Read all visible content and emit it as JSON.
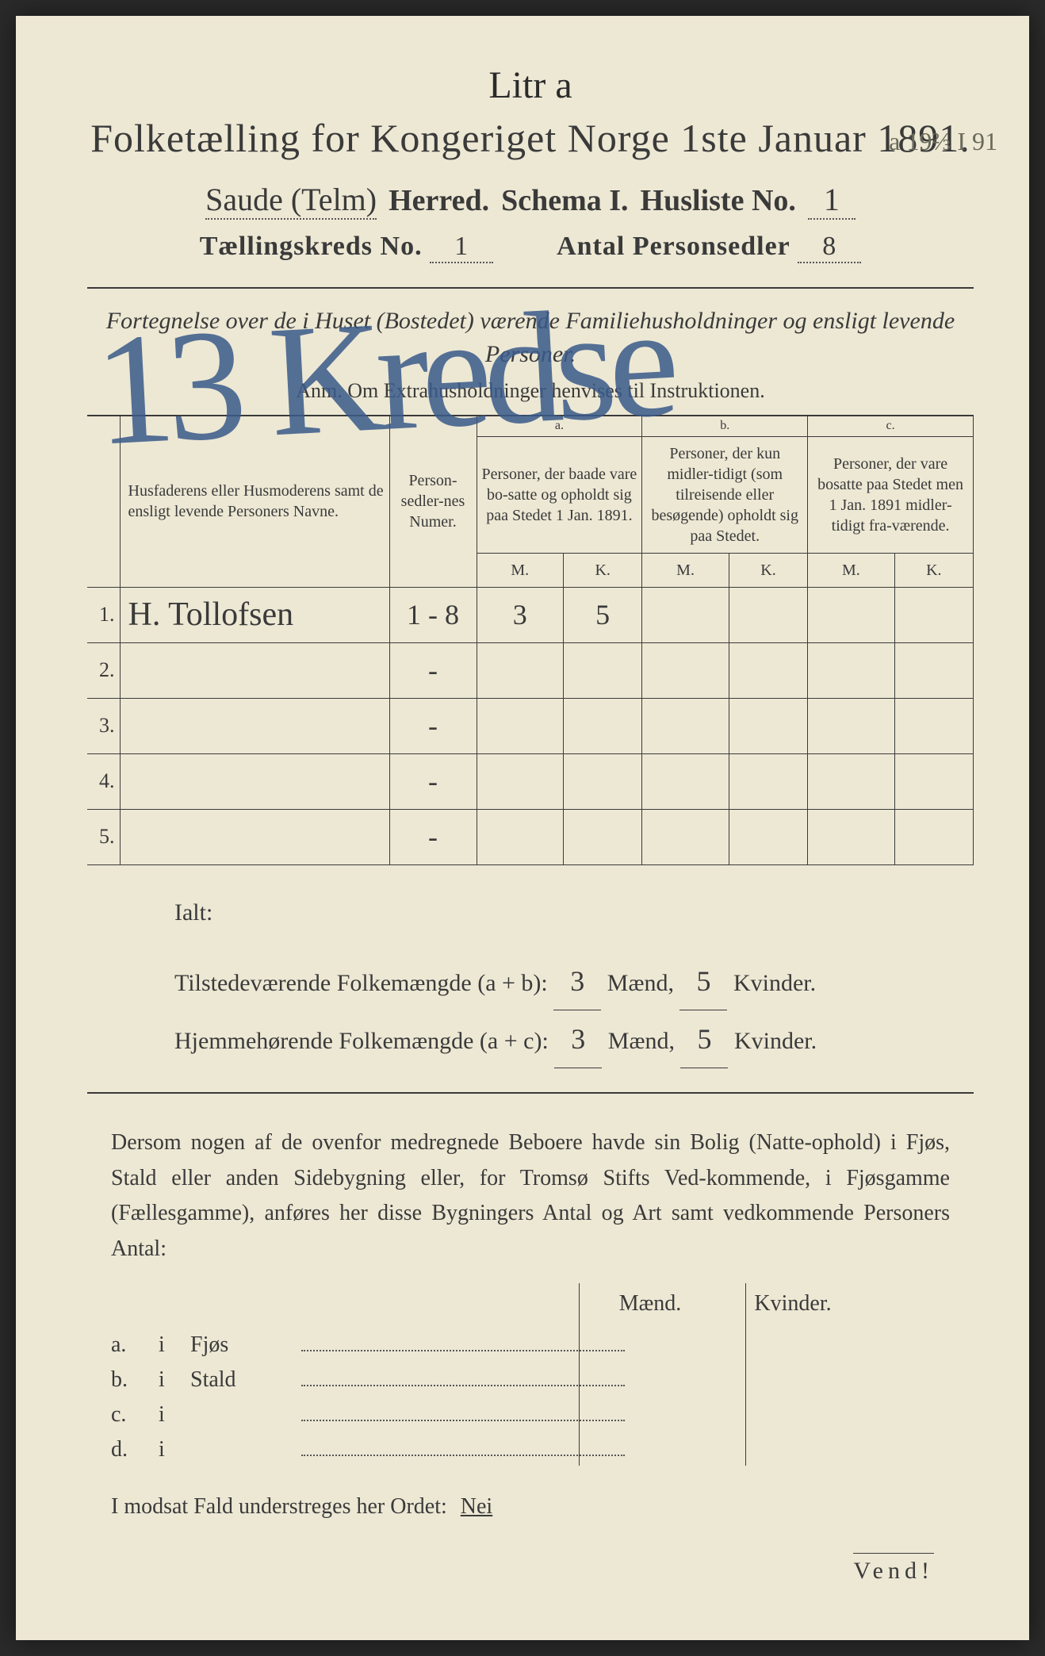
{
  "top_script": "Litr a",
  "title": "Folketælling for Kongeriget Norge 1ste Januar 1891.",
  "herred_value": "Saude (Telm)",
  "herred_label": "Herred.",
  "schema_label": "Schema I.",
  "husliste_label": "Husliste No.",
  "husliste_value": "1",
  "corner_note": "a 19⅔ I 91",
  "kreds_label": "Tællingskreds No.",
  "kreds_value": "1",
  "antal_label": "Antal Personsedler",
  "antal_value": "8",
  "subtitle": "Fortegnelse over de i Huset (Bostedet) værende Familiehusholdninger og ensligt levende Personer.",
  "anm": "Anm. Om Extrahusholdninger henvises til Instruktionen.",
  "big_overlay": "13 Kredse",
  "table": {
    "head_name": "Husfaderens eller Husmoderens samt de ensligt levende Personers Navne.",
    "head_numer": "Person-sedler-nes Numer.",
    "head_a_label": "a.",
    "head_a": "Personer, der baade vare bo-satte og opholdt sig paa Stedet 1 Jan. 1891.",
    "head_b_label": "b.",
    "head_b": "Personer, der kun midler-tidigt (som tilreisende eller besøgende) opholdt sig paa Stedet.",
    "head_c_label": "c.",
    "head_c": "Personer, der vare bosatte paa Stedet men 1 Jan. 1891 midler-tidigt fra-værende.",
    "m": "M.",
    "k": "K.",
    "rows": [
      {
        "n": "1.",
        "name": "H. Tollofsen",
        "numer": "1 - 8",
        "am": "3",
        "ak": "5",
        "bm": "",
        "bk": "",
        "cm": "",
        "ck": ""
      },
      {
        "n": "2.",
        "name": "",
        "numer": "-",
        "am": "",
        "ak": "",
        "bm": "",
        "bk": "",
        "cm": "",
        "ck": ""
      },
      {
        "n": "3.",
        "name": "",
        "numer": "-",
        "am": "",
        "ak": "",
        "bm": "",
        "bk": "",
        "cm": "",
        "ck": ""
      },
      {
        "n": "4.",
        "name": "",
        "numer": "-",
        "am": "",
        "ak": "",
        "bm": "",
        "bk": "",
        "cm": "",
        "ck": ""
      },
      {
        "n": "5.",
        "name": "",
        "numer": "-",
        "am": "",
        "ak": "",
        "bm": "",
        "bk": "",
        "cm": "",
        "ck": ""
      }
    ]
  },
  "ialt": "Ialt:",
  "tot1_label": "Tilstedeværende Folkemængde (a + b):",
  "tot2_label": "Hjemmehørende Folkemængde (a + c):",
  "tot1_m": "3",
  "tot1_k": "5",
  "tot2_m": "3",
  "tot2_k": "5",
  "maend": "Mænd,",
  "kvinder": "Kvinder.",
  "paragraph": "Dersom nogen af de ovenfor medregnede Beboere havde sin Bolig (Natte-ophold) i Fjøs, Stald eller anden Sidebygning eller, for Tromsø Stifts Ved-kommende, i Fjøsgamme (Fællesgamme), anføres her disse Bygningers Antal og Art samt vedkommende Personers Antal:",
  "bhead_m": "Mænd.",
  "bhead_k": "Kvinder.",
  "brows": [
    {
      "l": "a.",
      "i": "i",
      "name": "Fjøs"
    },
    {
      "l": "b.",
      "i": "i",
      "name": "Stald"
    },
    {
      "l": "c.",
      "i": "i",
      "name": ""
    },
    {
      "l": "d.",
      "i": "i",
      "name": ""
    }
  ],
  "bottom": "I modsat Fald understreges her Ordet:",
  "nei": "Nei",
  "vend": "Vend!",
  "colors": {
    "paper": "#ede8d4",
    "ink": "#3a3a3a",
    "blue_pencil": "#3a5a8a"
  }
}
